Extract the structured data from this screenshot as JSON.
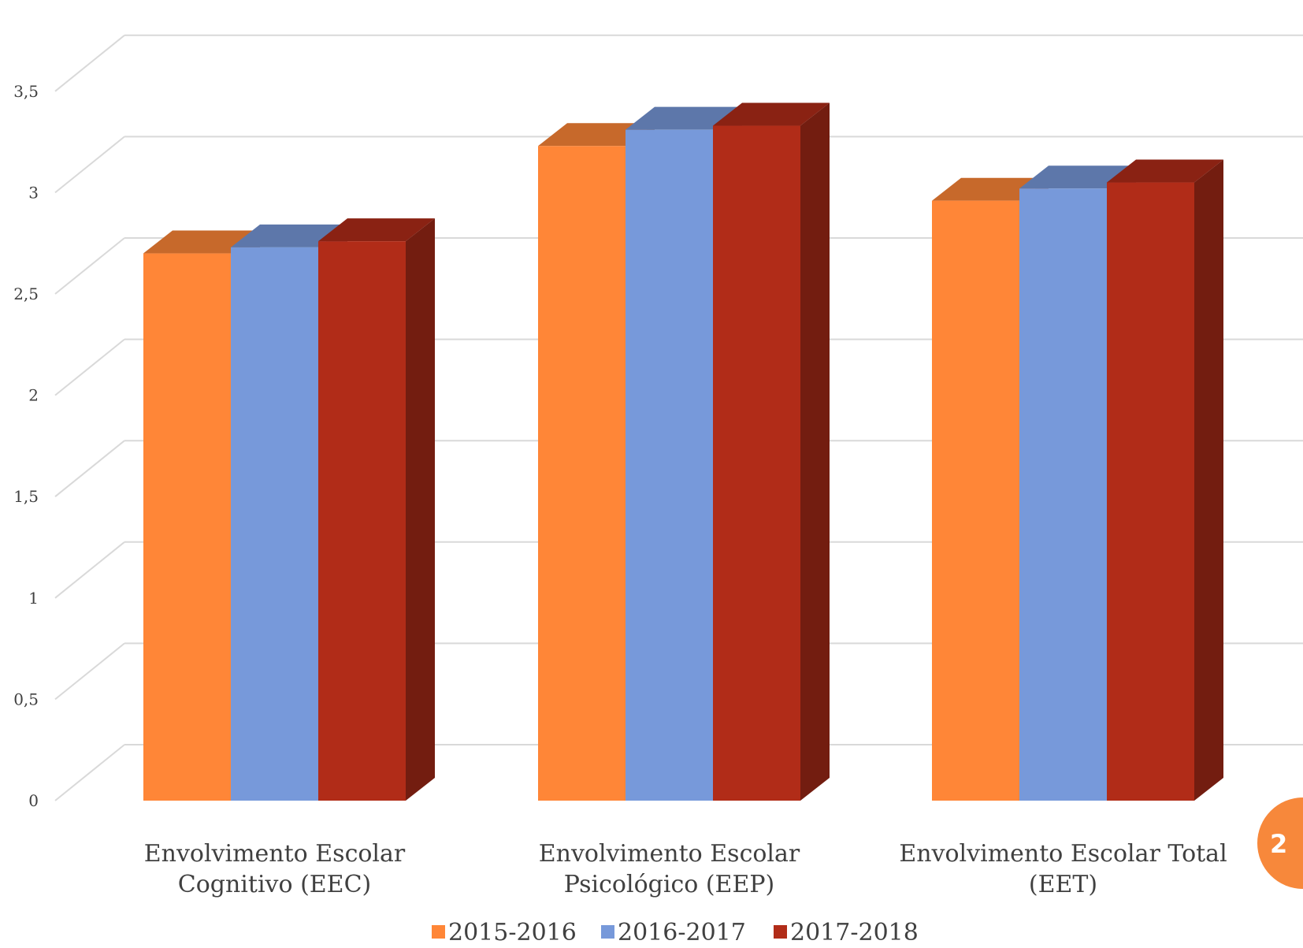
{
  "chart_data": {
    "type": "bar",
    "categories": [
      [
        "Envolvimento Escolar",
        "Cognitivo (EEC)"
      ],
      [
        "Envolvimento Escolar",
        "Psicológico (EEP)"
      ],
      [
        "Envolvimento Escolar Total",
        "(EET)"
      ]
    ],
    "series": [
      {
        "name": "2015-2016",
        "values": [
          2.7,
          3.23,
          2.96
        ],
        "color": "#FF8637"
      },
      {
        "name": "2016-2017",
        "values": [
          2.73,
          3.31,
          3.02
        ],
        "color": "#7799DA"
      },
      {
        "name": "2017-2018",
        "values": [
          2.76,
          3.33,
          3.05
        ],
        "color": "#B12C18"
      }
    ],
    "ylim": [
      0,
      3.5
    ],
    "yticks": [
      "0",
      "0,5",
      "1",
      "1,5",
      "2",
      "2,5",
      "3",
      "3,5"
    ],
    "grid": true,
    "legend_position": "bottom",
    "style": "3d-clustered-column"
  },
  "slide": {
    "page_number": "2"
  }
}
